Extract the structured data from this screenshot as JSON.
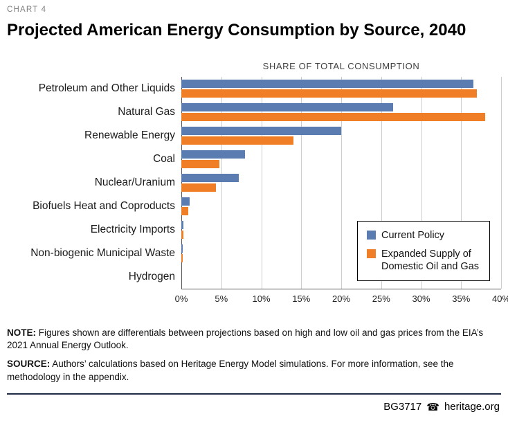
{
  "page": {
    "kicker": "CHART 4",
    "title": "Projected American Energy Consumption by Source, 2040"
  },
  "chart_data": {
    "type": "bar",
    "orientation": "horizontal",
    "title": "SHARE OF TOTAL CONSUMPTION",
    "categories": [
      "Petroleum and Other Liquids",
      "Natural Gas",
      "Renewable Energy",
      "Coal",
      "Nuclear/Uranium",
      "Biofuels Heat and Coproducts",
      "Electricity Imports",
      "Non-biogenic Municipal Waste",
      "Hydrogen"
    ],
    "series": [
      {
        "name": "Current Policy",
        "color": "#5B7CB1",
        "values": [
          36.5,
          26.5,
          20,
          8,
          7.2,
          1.0,
          0.3,
          0.2,
          0
        ]
      },
      {
        "name": "Expanded Supply of Domestic Oil and Gas",
        "color": "#F07E26",
        "values": [
          37,
          38,
          14,
          4.8,
          4.3,
          0.9,
          0.25,
          0.2,
          0
        ]
      }
    ],
    "xlim": [
      0,
      40
    ],
    "ticks": [
      0,
      5,
      10,
      15,
      20,
      25,
      30,
      35,
      40
    ],
    "tick_suffix": "%",
    "grid": "vertical",
    "legend_position": "inside-right"
  },
  "notes": {
    "note_label": "NOTE:",
    "note_text": " Figures shown are differentials between projections based on high and low oil and gas prices from the EIA’s 2021 Annual Energy Outlook.",
    "source_label": "SOURCE:",
    "source_text": " Authors’ calculations based on Heritage Energy Model simulations. For more information, see the methodology in the appendix."
  },
  "footer": {
    "doc_id": "BG3717",
    "bell_icon": "☎",
    "site": "heritage.org"
  }
}
